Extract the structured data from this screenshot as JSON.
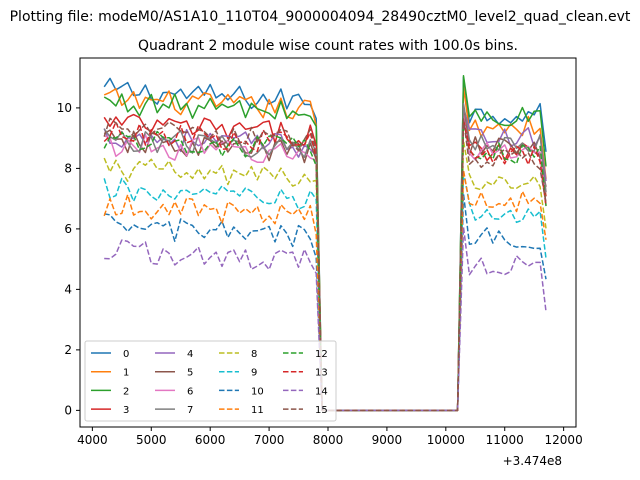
{
  "figure": {
    "suptitle": "Plotting file: modeM0/AS1A10_110T04_9000004094_28490cztM0_level2_quad_clean.evt",
    "title": "Quadrant 2 module wise count rates with 100.0s bins.",
    "x_offset_label": "+3.474e8"
  },
  "chart_data": {
    "type": "line",
    "title": "Quadrant 2 module wise count rates with 100.0s bins.",
    "xlabel": "",
    "ylabel": "",
    "x_offset": 347400000,
    "xlim": [
      3790,
      12210
    ],
    "ylim": [
      -0.55,
      11.65
    ],
    "xticks": [
      4000,
      5000,
      6000,
      7000,
      8000,
      9000,
      10000,
      11000,
      12000
    ],
    "yticks": [
      0,
      2,
      4,
      6,
      8,
      10
    ],
    "legend": {
      "placement": "lower-left",
      "columns": 4
    },
    "x_segments": {
      "first": [
        4200,
        7800
      ],
      "gap": [
        7900,
        10200
      ],
      "second": [
        10300,
        11700
      ],
      "step": 100
    },
    "series": [
      {
        "name": "0",
        "color": "#1f77b4",
        "dash": "solid",
        "level1": 10.2,
        "level2": 9.8
      },
      {
        "name": "1",
        "color": "#ff7f0e",
        "dash": "solid",
        "level1": 9.9,
        "level2": 9.4
      },
      {
        "name": "2",
        "color": "#2ca02c",
        "dash": "solid",
        "level1": 9.8,
        "level2": 9.7
      },
      {
        "name": "3",
        "color": "#d62728",
        "dash": "solid",
        "level1": 9.1,
        "level2": 8.6
      },
      {
        "name": "4",
        "color": "#9467bd",
        "dash": "solid",
        "level1": 8.7,
        "level2": 9.0
      },
      {
        "name": "5",
        "color": "#8c564b",
        "dash": "solid",
        "level1": 8.5,
        "level2": 8.7
      },
      {
        "name": "6",
        "color": "#e377c2",
        "dash": "solid",
        "level1": 8.4,
        "level2": 8.6
      },
      {
        "name": "7",
        "color": "#7f7f7f",
        "dash": "solid",
        "level1": 8.6,
        "level2": 8.9
      },
      {
        "name": "8",
        "color": "#bcbd22",
        "dash": "dashed",
        "level1": 7.6,
        "level2": 7.6
      },
      {
        "name": "9",
        "color": "#17becf",
        "dash": "dashed",
        "level1": 6.9,
        "level2": 6.5
      },
      {
        "name": "10",
        "color": "#1f77b4",
        "dash": "dashed",
        "level1": 5.7,
        "level2": 5.7
      },
      {
        "name": "11",
        "color": "#ff7f0e",
        "dash": "dashed",
        "level1": 6.4,
        "level2": 6.9
      },
      {
        "name": "12",
        "color": "#2ca02c",
        "dash": "dashed",
        "level1": 8.6,
        "level2": 8.5
      },
      {
        "name": "13",
        "color": "#d62728",
        "dash": "dashed",
        "level1": 8.8,
        "level2": 8.4
      },
      {
        "name": "14",
        "color": "#9467bd",
        "dash": "dashed",
        "level1": 4.9,
        "level2": 4.8
      },
      {
        "name": "15",
        "color": "#8c564b",
        "dash": "dashed",
        "level1": 8.9,
        "level2": 8.3
      }
    ]
  }
}
